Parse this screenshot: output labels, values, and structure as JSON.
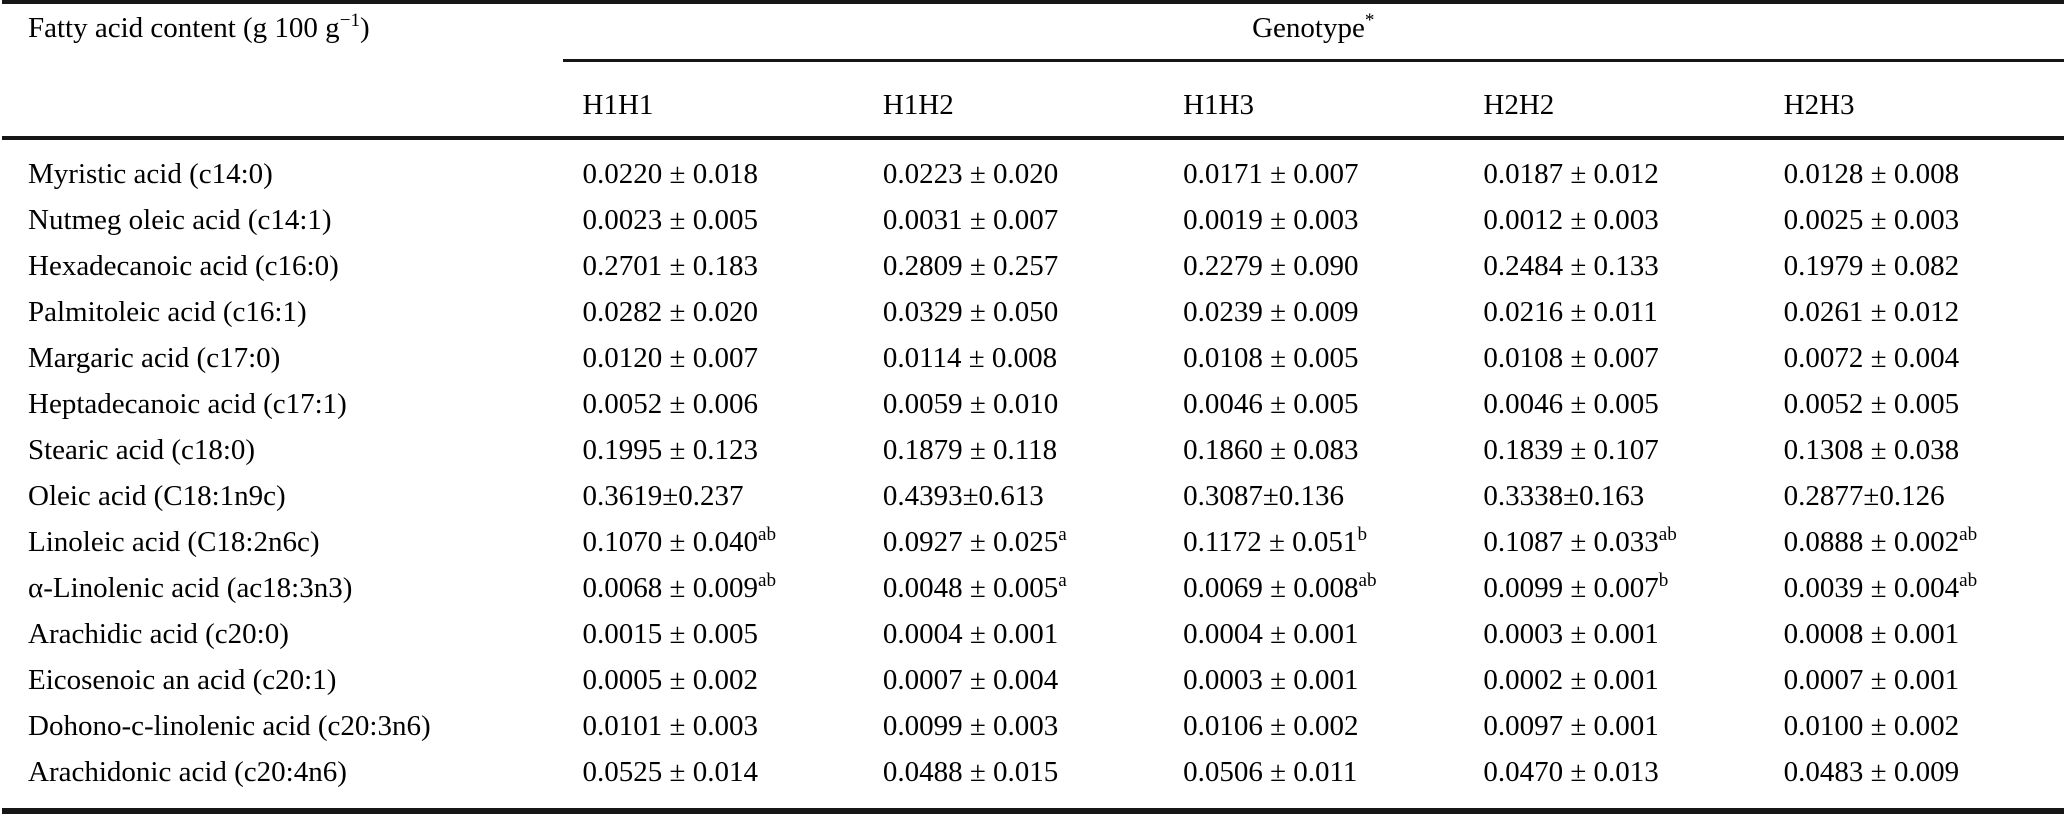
{
  "table": {
    "corner_header": {
      "prefix": "Fatty acid content (g 100 g",
      "sup": "−1",
      "suffix": ")"
    },
    "group_header": {
      "label": "Genotype",
      "sup": "*"
    },
    "genotypes": [
      "H1H1",
      "H1H2",
      "H1H3",
      "H2H2",
      "H2H3"
    ],
    "rows": [
      {
        "label": "Myristic acid (c14:0)",
        "cells": [
          {
            "text": "0.0220 ± 0.018"
          },
          {
            "text": "0.0223 ± 0.020"
          },
          {
            "text": "0.0171 ± 0.007"
          },
          {
            "text": "0.0187 ± 0.012"
          },
          {
            "text": "0.0128 ± 0.008"
          }
        ]
      },
      {
        "label": "Nutmeg oleic acid (c14:1)",
        "cells": [
          {
            "text": "0.0023 ± 0.005"
          },
          {
            "text": "0.0031 ± 0.007"
          },
          {
            "text": "0.0019 ± 0.003"
          },
          {
            "text": "0.0012 ± 0.003"
          },
          {
            "text": "0.0025 ± 0.003"
          }
        ]
      },
      {
        "label": "Hexadecanoic acid (c16:0)",
        "cells": [
          {
            "text": "0.2701 ± 0.183"
          },
          {
            "text": "0.2809 ± 0.257"
          },
          {
            "text": "0.2279 ± 0.090"
          },
          {
            "text": "0.2484 ± 0.133"
          },
          {
            "text": "0.1979 ± 0.082"
          }
        ]
      },
      {
        "label": "Palmitoleic acid (c16:1)",
        "cells": [
          {
            "text": "0.0282 ± 0.020"
          },
          {
            "text": "0.0329 ± 0.050"
          },
          {
            "text": "0.0239 ± 0.009"
          },
          {
            "text": "0.0216 ± 0.011"
          },
          {
            "text": "0.0261 ± 0.012"
          }
        ]
      },
      {
        "label": "Margaric acid (c17:0)",
        "cells": [
          {
            "text": "0.0120 ± 0.007"
          },
          {
            "text": "0.0114 ± 0.008"
          },
          {
            "text": "0.0108 ± 0.005"
          },
          {
            "text": "0.0108 ± 0.007"
          },
          {
            "text": "0.0072 ± 0.004"
          }
        ]
      },
      {
        "label": "Heptadecanoic acid (c17:1)",
        "cells": [
          {
            "text": "0.0052 ± 0.006"
          },
          {
            "text": "0.0059 ± 0.010"
          },
          {
            "text": "0.0046 ± 0.005"
          },
          {
            "text": "0.0046 ± 0.005"
          },
          {
            "text": "0.0052 ± 0.005"
          }
        ]
      },
      {
        "label": "Stearic acid (c18:0)",
        "cells": [
          {
            "text": "0.1995 ± 0.123"
          },
          {
            "text": "0.1879 ± 0.118"
          },
          {
            "text": "0.1860 ± 0.083"
          },
          {
            "text": "0.1839 ± 0.107"
          },
          {
            "text": "0.1308 ± 0.038"
          }
        ]
      },
      {
        "label": "Oleic acid (C18:1n9c)",
        "cells": [
          {
            "text": "0.3619±0.237"
          },
          {
            "text": "0.4393±0.613"
          },
          {
            "text": "0.3087±0.136"
          },
          {
            "text": "0.3338±0.163"
          },
          {
            "text": "0.2877±0.126"
          }
        ]
      },
      {
        "label": "Linoleic acid (C18:2n6c)",
        "cells": [
          {
            "text": "0.1070 ± 0.040",
            "sup": "ab"
          },
          {
            "text": "0.0927 ± 0.025",
            "sup": "a"
          },
          {
            "text": "0.1172 ± 0.051",
            "sup": "b"
          },
          {
            "text": "0.1087 ± 0.033",
            "sup": "ab"
          },
          {
            "text": "0.0888 ± 0.002",
            "sup": "ab"
          }
        ]
      },
      {
        "label": "α-Linolenic acid (ac18:3n3)",
        "cells": [
          {
            "text": "0.0068 ± 0.009",
            "sup": "ab"
          },
          {
            "text": "0.0048 ± 0.005",
            "sup": "a"
          },
          {
            "text": "0.0069 ± 0.008",
            "sup": "ab"
          },
          {
            "text": "0.0099 ± 0.007",
            "sup": "b"
          },
          {
            "text": "0.0039 ± 0.004",
            "sup": "ab"
          }
        ]
      },
      {
        "label": "Arachidic acid (c20:0)",
        "cells": [
          {
            "text": "0.0015 ± 0.005"
          },
          {
            "text": "0.0004 ± 0.001"
          },
          {
            "text": "0.0004 ± 0.001"
          },
          {
            "text": "0.0003 ± 0.001"
          },
          {
            "text": "0.0008 ± 0.001"
          }
        ]
      },
      {
        "label": "Eicosenoic an acid (c20:1)",
        "cells": [
          {
            "text": "0.0005 ± 0.002"
          },
          {
            "text": "0.0007 ± 0.004"
          },
          {
            "text": "0.0003 ± 0.001"
          },
          {
            "text": "0.0002 ± 0.001"
          },
          {
            "text": "0.0007 ± 0.001"
          }
        ]
      },
      {
        "label": "Dohono-c-linolenic acid (c20:3n6)",
        "cells": [
          {
            "text": "0.0101 ± 0.003"
          },
          {
            "text": "0.0099 ± 0.003"
          },
          {
            "text": "0.0106 ± 0.002"
          },
          {
            "text": "0.0097 ± 0.001"
          },
          {
            "text": "0.0100 ± 0.002"
          }
        ]
      },
      {
        "label": "Arachidonic acid (c20:4n6)",
        "cells": [
          {
            "text": "0.0525 ± 0.014"
          },
          {
            "text": "0.0488 ± 0.015"
          },
          {
            "text": "0.0506 ± 0.011"
          },
          {
            "text": "0.0470 ± 0.013"
          },
          {
            "text": "0.0483 ± 0.009"
          }
        ]
      }
    ]
  }
}
